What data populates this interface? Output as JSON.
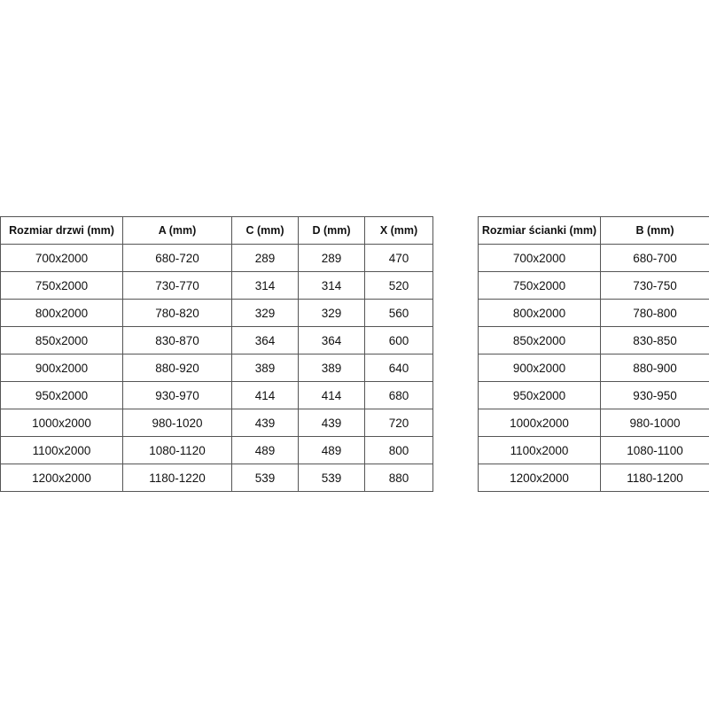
{
  "door_table": {
    "headers": [
      "Rozmiar drzwi (mm)",
      "A (mm)",
      "C (mm)",
      "D (mm)",
      "X (mm)"
    ],
    "rows": [
      [
        "700x2000",
        "680-720",
        "289",
        "289",
        "470"
      ],
      [
        "750x2000",
        "730-770",
        "314",
        "314",
        "520"
      ],
      [
        "800x2000",
        "780-820",
        "329",
        "329",
        "560"
      ],
      [
        "850x2000",
        "830-870",
        "364",
        "364",
        "600"
      ],
      [
        "900x2000",
        "880-920",
        "389",
        "389",
        "640"
      ],
      [
        "950x2000",
        "930-970",
        "414",
        "414",
        "680"
      ],
      [
        "1000x2000",
        "980-1020",
        "439",
        "439",
        "720"
      ],
      [
        "1100x2000",
        "1080-1120",
        "489",
        "489",
        "800"
      ],
      [
        "1200x2000",
        "1180-1220",
        "539",
        "539",
        "880"
      ]
    ]
  },
  "wall_table": {
    "headers": [
      "Rozmiar ścianki (mm)",
      "B (mm)"
    ],
    "rows": [
      [
        "700x2000",
        "680-700"
      ],
      [
        "750x2000",
        "730-750"
      ],
      [
        "800x2000",
        "780-800"
      ],
      [
        "850x2000",
        "830-850"
      ],
      [
        "900x2000",
        "880-900"
      ],
      [
        "950x2000",
        "930-950"
      ],
      [
        "1000x2000",
        "980-1000"
      ],
      [
        "1100x2000",
        "1080-1100"
      ],
      [
        "1200x2000",
        "1180-1200"
      ]
    ]
  }
}
